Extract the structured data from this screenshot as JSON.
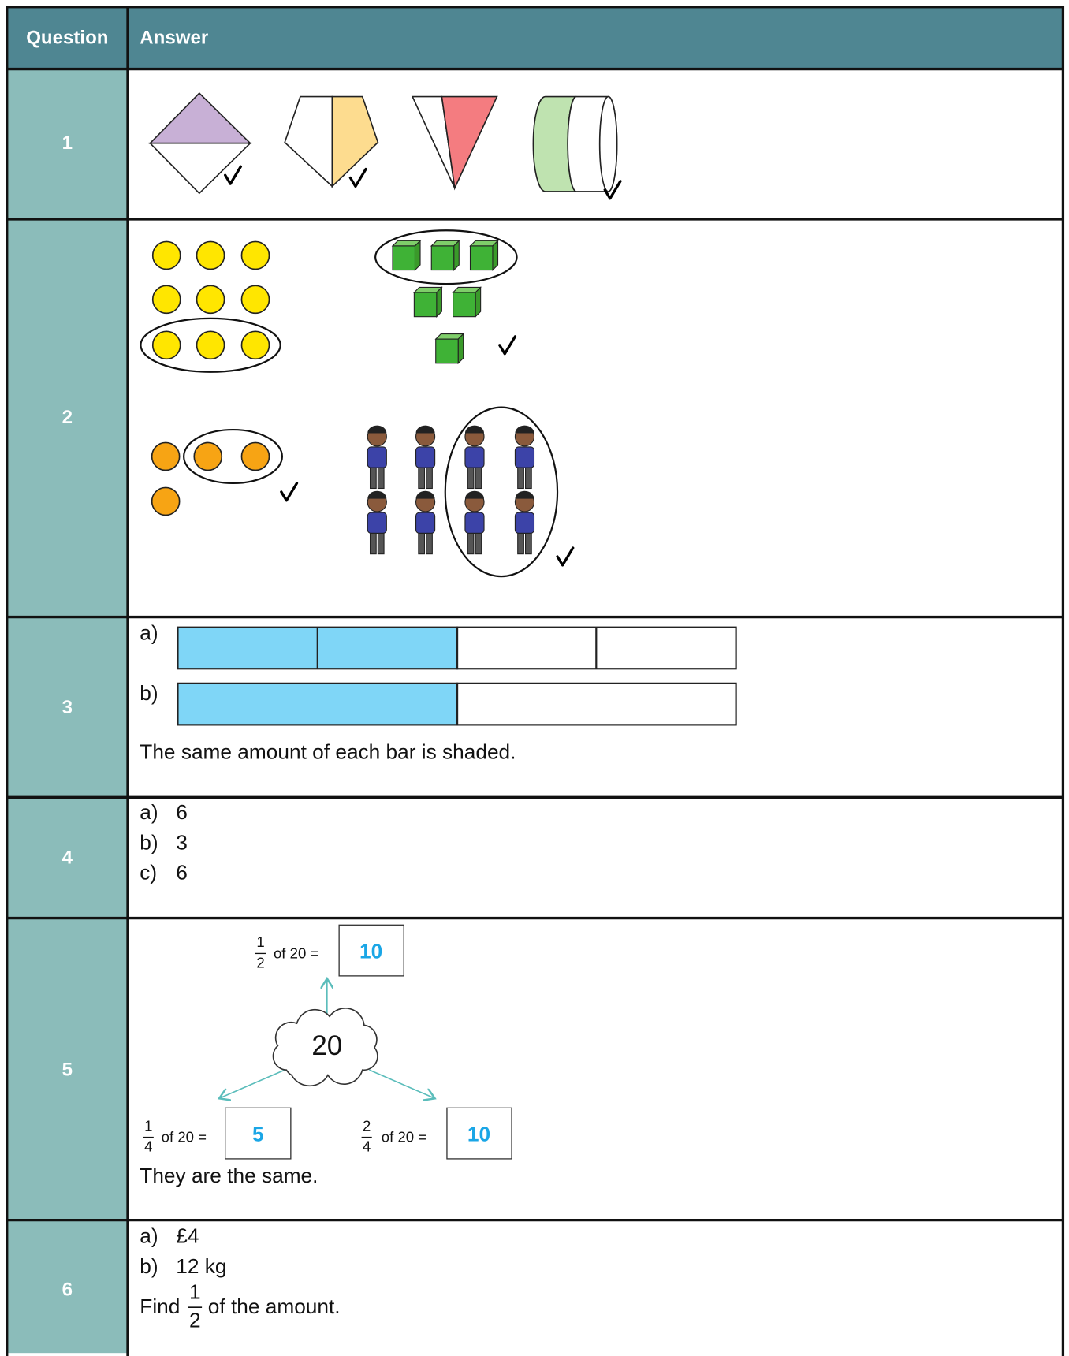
{
  "header": {
    "question": "Question",
    "answer": "Answer"
  },
  "rows": [
    {
      "number": "1"
    },
    {
      "number": "2"
    },
    {
      "number": "3",
      "parts": [
        "a)",
        "b)"
      ],
      "text": "The same amount of each bar is shaded."
    },
    {
      "number": "4",
      "answers": [
        {
          "label": "a)",
          "value": "6"
        },
        {
          "label": "b)",
          "value": "3"
        },
        {
          "label": "c)",
          "value": "6"
        }
      ]
    },
    {
      "number": "5",
      "center": "20",
      "items": [
        {
          "numerator": "1",
          "denominator": "2",
          "text": "of 20 =",
          "answer": "10"
        },
        {
          "numerator": "1",
          "denominator": "4",
          "text": "of 20 =",
          "answer": "5"
        },
        {
          "numerator": "2",
          "denominator": "4",
          "text": "of 20 =",
          "answer": "10"
        }
      ],
      "text": "They are the same."
    },
    {
      "number": "6",
      "answers": [
        {
          "label": "a)",
          "value": "£4"
        },
        {
          "label": "b)",
          "value": "12 kg"
        }
      ],
      "text_before": "Find",
      "numerator": "1",
      "denominator": "2",
      "text_after": "of the amount."
    }
  ]
}
